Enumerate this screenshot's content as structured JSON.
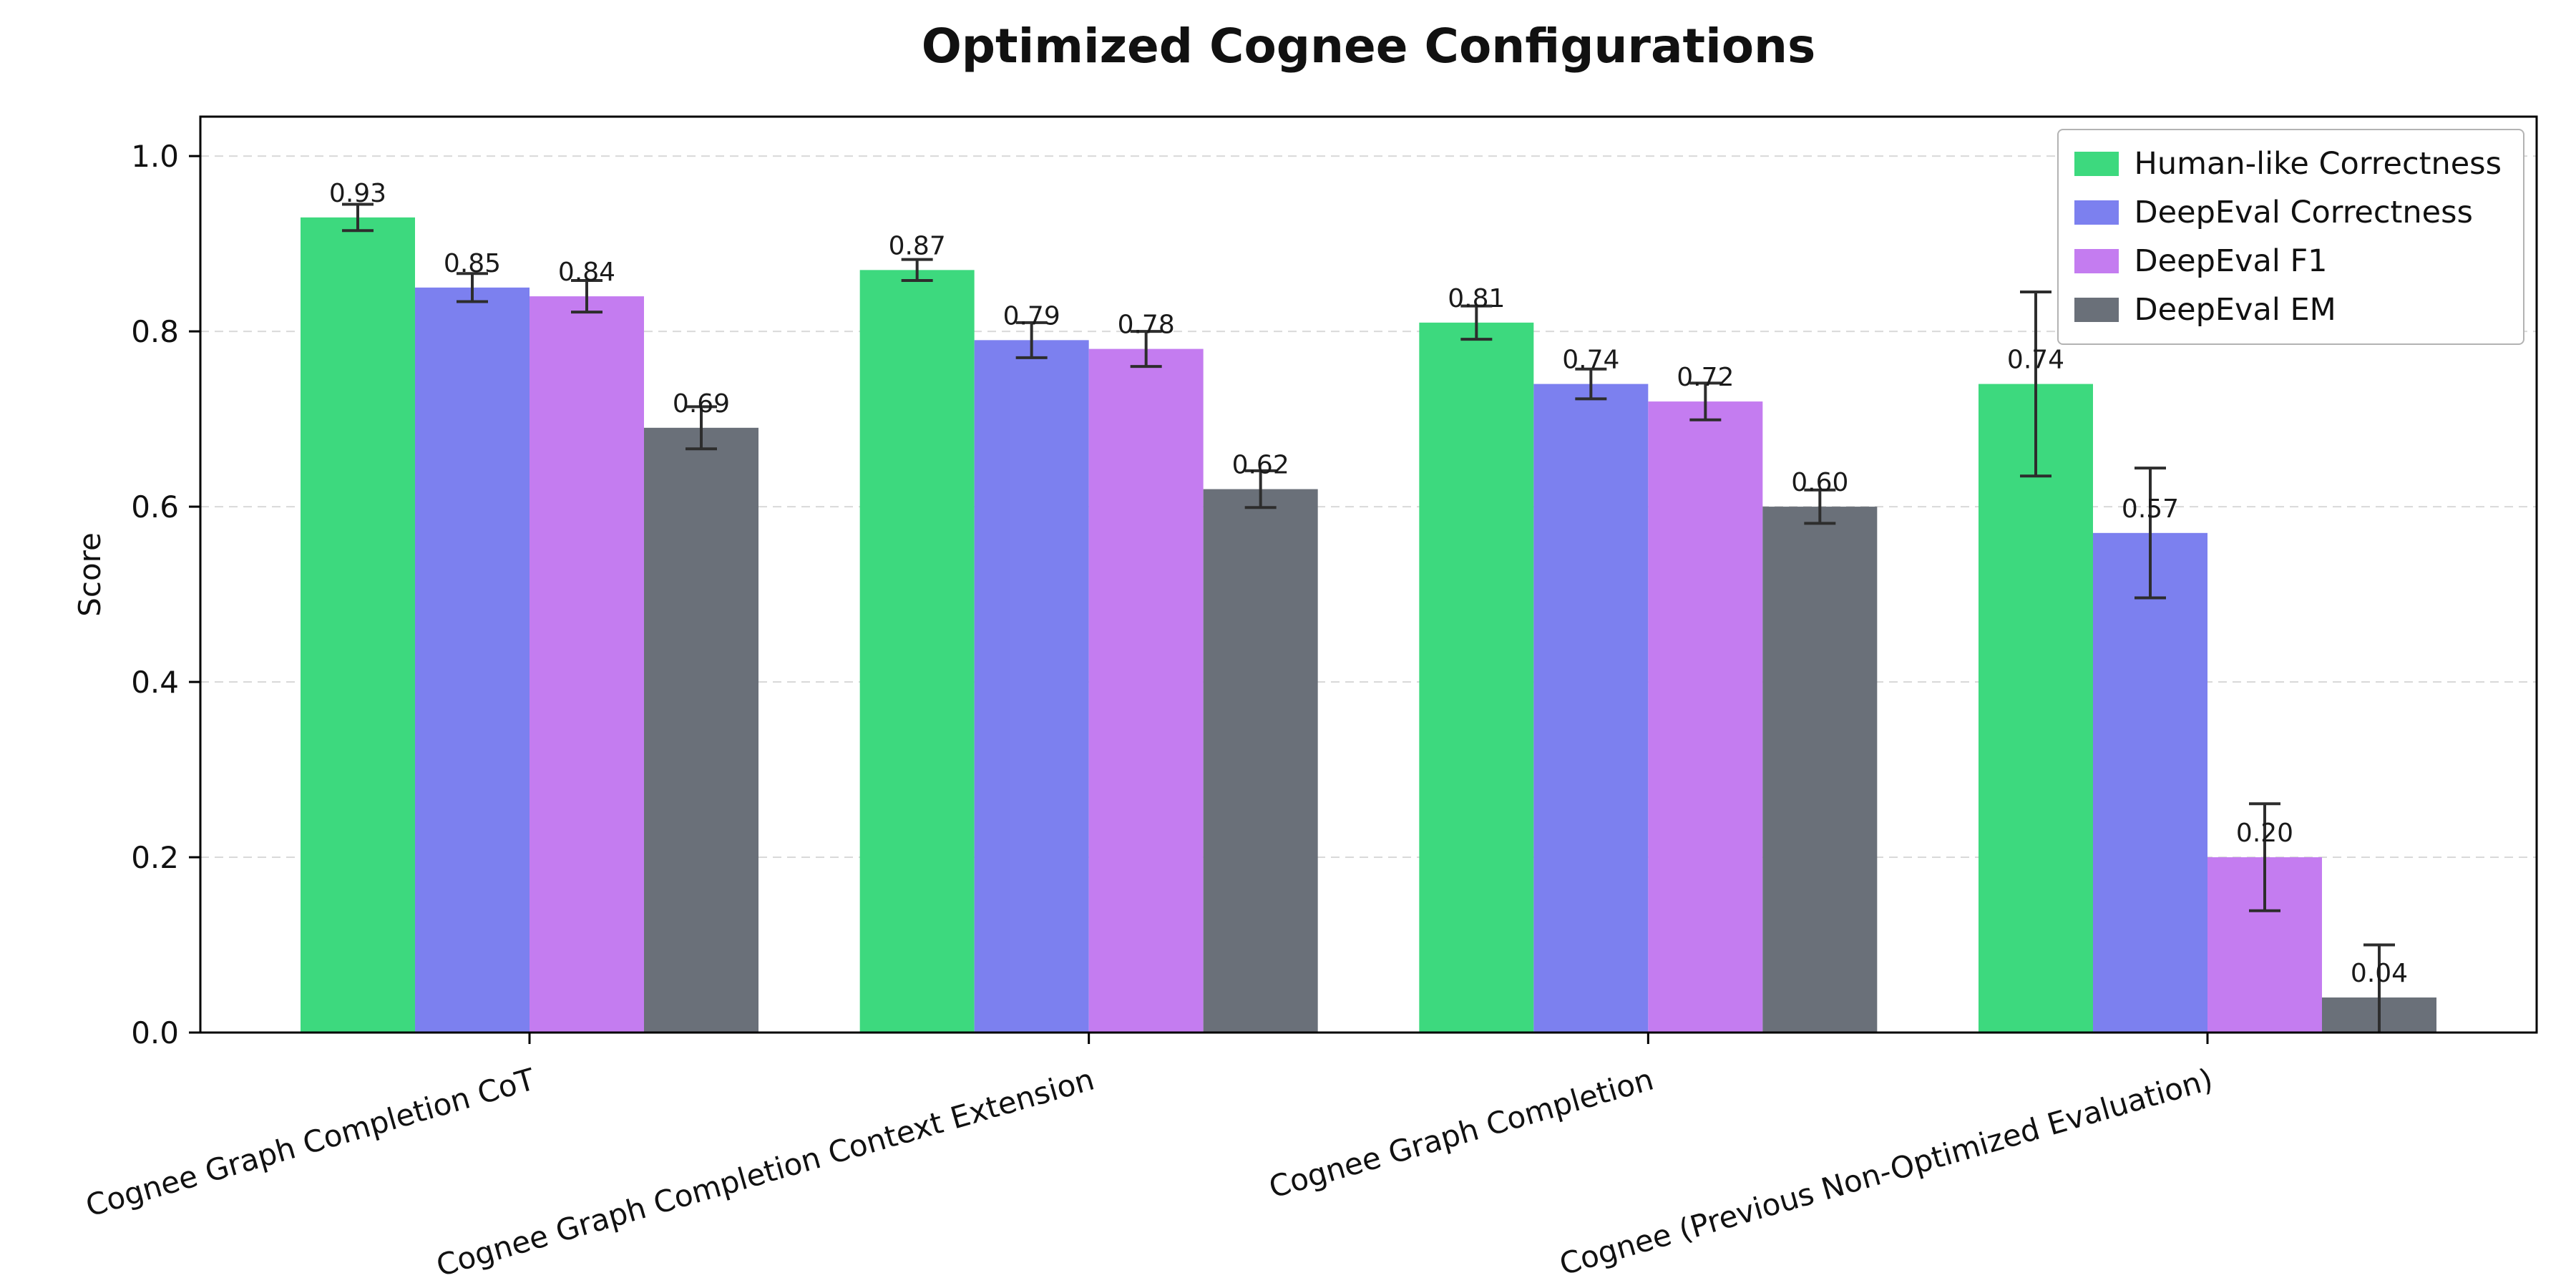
{
  "chart_data": {
    "type": "bar",
    "title": "Optimized Cognee Configurations",
    "ylabel": "Score",
    "xlabel": "",
    "ylim": [
      0.0,
      1.045
    ],
    "yticks": [
      0.0,
      0.2,
      0.4,
      0.6,
      0.8,
      1.0
    ],
    "grid": "horizontal dashed",
    "legend_position": "upper right",
    "x_tick_label_rotation_deg": 16,
    "categories": [
      "Cognee Graph Completion CoT",
      "Cognee Graph Completion Context Extension",
      "Cognee Graph Completion",
      "Cognee (Previous Non-Optimized Evaluation)"
    ],
    "series": [
      {
        "name": "Human-like Correctness",
        "color": "#3dd97e",
        "values": [
          0.93,
          0.87,
          0.81,
          0.74
        ],
        "errors": [
          0.015,
          0.012,
          0.019,
          0.105
        ]
      },
      {
        "name": "DeepEval Correctness",
        "color": "#7c80ef",
        "values": [
          0.85,
          0.79,
          0.74,
          0.57
        ],
        "errors": [
          0.016,
          0.02,
          0.017,
          0.074
        ]
      },
      {
        "name": "DeepEval F1",
        "color": "#c47cf0",
        "values": [
          0.84,
          0.78,
          0.72,
          0.2
        ],
        "errors": [
          0.018,
          0.02,
          0.021,
          0.061
        ]
      },
      {
        "name": "DeepEval EM",
        "color": "#6a7079",
        "values": [
          0.69,
          0.62,
          0.6,
          0.04
        ],
        "errors": [
          0.024,
          0.021,
          0.019,
          0.06
        ]
      }
    ],
    "bar_value_labels_shown": true,
    "value_label_format": "two-decimals",
    "error_bar_color": "#2d2d2d",
    "axis_color": "#000000",
    "grid_color": "#d9d9d9"
  }
}
